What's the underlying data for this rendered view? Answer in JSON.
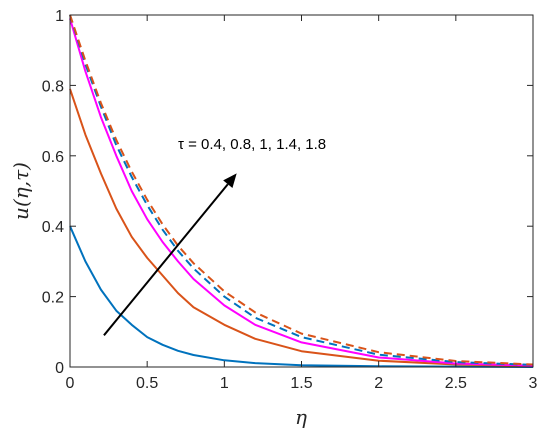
{
  "chart_data": {
    "type": "line",
    "xlabel": "η",
    "ylabel": "u(η,τ)",
    "xlim": [
      0,
      3
    ],
    "ylim": [
      0,
      1
    ],
    "x_ticks": [
      0,
      0.5,
      1,
      1.5,
      2,
      2.5,
      3
    ],
    "x_tick_labels": [
      "0",
      "0.5",
      "1",
      "1.5",
      "2",
      "2.5",
      "3"
    ],
    "y_ticks": [
      0,
      0.2,
      0.4,
      0.6,
      0.8,
      1
    ],
    "y_tick_labels": [
      "0",
      "0.2",
      "0.4",
      "0.6",
      "0.8",
      "1"
    ],
    "grid": false,
    "annotation": {
      "text": "τ = 0.4, 0.8, 1, 1.4, 1.8",
      "arrow_from": [
        0.22,
        0.09
      ],
      "arrow_to": [
        1.08,
        0.55
      ],
      "text_anchor": [
        0.7,
        0.62
      ]
    },
    "series": [
      {
        "color": "#0072BD",
        "dash": "solid",
        "x": [
          0,
          0.1,
          0.2,
          0.3,
          0.4,
          0.5,
          0.6,
          0.7,
          0.8,
          1.0,
          1.2,
          1.5,
          2.0,
          2.5,
          3.0
        ],
        "y": [
          0.4,
          0.3,
          0.22,
          0.16,
          0.12,
          0.085,
          0.063,
          0.046,
          0.034,
          0.019,
          0.011,
          0.005,
          0.002,
          0.001,
          0.0
        ]
      },
      {
        "color": "#D95319",
        "dash": "solid",
        "x": [
          0,
          0.1,
          0.2,
          0.3,
          0.4,
          0.5,
          0.6,
          0.7,
          0.8,
          1.0,
          1.2,
          1.5,
          2.0,
          2.5,
          3.0
        ],
        "y": [
          0.79,
          0.66,
          0.55,
          0.45,
          0.37,
          0.31,
          0.26,
          0.21,
          0.17,
          0.12,
          0.08,
          0.045,
          0.018,
          0.007,
          0.003
        ]
      },
      {
        "color": "#FF00FF",
        "dash": "solid",
        "x": [
          0,
          0.1,
          0.2,
          0.3,
          0.4,
          0.5,
          0.6,
          0.7,
          0.8,
          1.0,
          1.2,
          1.5,
          2.0,
          2.5,
          3.0
        ],
        "y": [
          0.99,
          0.84,
          0.71,
          0.6,
          0.5,
          0.42,
          0.355,
          0.3,
          0.25,
          0.175,
          0.12,
          0.07,
          0.027,
          0.01,
          0.004
        ]
      },
      {
        "color": "#0072BD",
        "dash": "dashed",
        "x": [
          0,
          0.1,
          0.2,
          0.3,
          0.4,
          0.5,
          0.6,
          0.7,
          0.8,
          1.0,
          1.2,
          1.5,
          2.0,
          2.5,
          3.0
        ],
        "y": [
          1.0,
          0.86,
          0.74,
          0.63,
          0.54,
          0.46,
          0.39,
          0.33,
          0.28,
          0.2,
          0.14,
          0.085,
          0.035,
          0.014,
          0.006
        ]
      },
      {
        "color": "#D95319",
        "dash": "dashed",
        "x": [
          0,
          0.1,
          0.2,
          0.3,
          0.4,
          0.5,
          0.6,
          0.7,
          0.8,
          1.0,
          1.2,
          1.5,
          2.0,
          2.5,
          3.0
        ],
        "y": [
          1.0,
          0.87,
          0.75,
          0.645,
          0.555,
          0.475,
          0.405,
          0.345,
          0.295,
          0.215,
          0.155,
          0.095,
          0.042,
          0.017,
          0.007
        ]
      }
    ]
  }
}
